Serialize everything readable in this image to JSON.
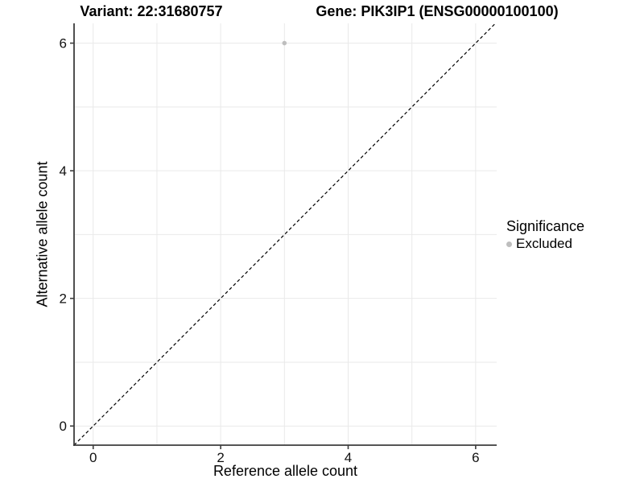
{
  "chart_data": {
    "type": "scatter",
    "title_left": "Variant: 22:31680757",
    "title_right": "Gene: PIK3IP1 (ENSG00000100100)",
    "xlabel": "Reference allele count",
    "ylabel": "Alternative allele count",
    "xlim": [
      -0.3,
      6.33
    ],
    "ylim": [
      -0.3,
      6.31
    ],
    "x_major_ticks": [
      0,
      2,
      4,
      6
    ],
    "y_major_ticks": [
      0,
      2,
      4,
      6
    ],
    "x_minor_ticks": [
      1,
      3,
      5
    ],
    "y_minor_ticks": [
      1,
      3,
      5
    ],
    "grid": true,
    "identity_line": {
      "style": "dashed",
      "from": [
        -0.3,
        -0.3
      ],
      "to": [
        6.31,
        6.31
      ],
      "color": "#000000"
    },
    "series": [
      {
        "name": "Excluded",
        "color": "#bebebe",
        "points": [
          {
            "x": 3,
            "y": 6
          }
        ]
      }
    ],
    "legend": {
      "title": "Significance",
      "position": "right",
      "items": [
        {
          "label": "Excluded",
          "color": "#bebebe"
        }
      ]
    },
    "colors": {
      "grid": "#e9e9e9",
      "axis": "#3d3d3d",
      "text": "#111111",
      "background": "#ffffff"
    }
  }
}
